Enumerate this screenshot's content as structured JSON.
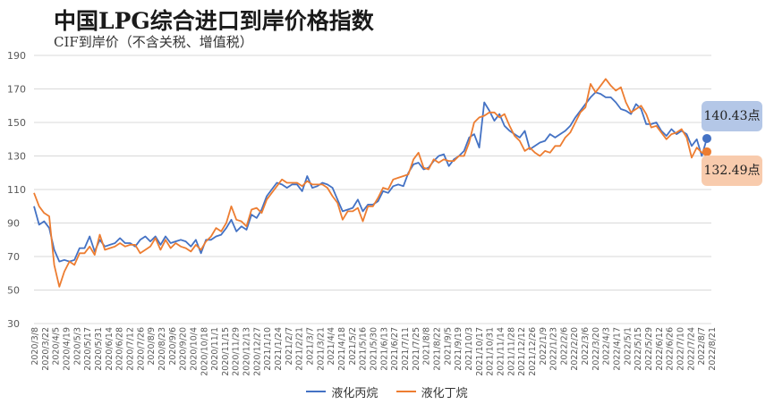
{
  "header": {
    "title": "中国LPG综合进口到岸价格指数",
    "subtitle": "CIF到岸价（不含关税、增值税）"
  },
  "colors": {
    "propane": "#4472C4",
    "butane": "#ED7D31",
    "callout_propane_bg": "#B4C7E7",
    "callout_butane_bg": "#F8CBAD",
    "grid": "#d9d9d9",
    "axis_text": "#595959"
  },
  "callouts": {
    "propane": "140.43点",
    "butane": "132.49点"
  },
  "chart_data": {
    "type": "line",
    "title": "中国LPG综合进口到岸价格指数",
    "subtitle": "CIF到岸价（不含关税、增值税）",
    "ylim": [
      30,
      190
    ],
    "yticks": [
      30,
      50,
      70,
      90,
      110,
      130,
      150,
      170,
      190
    ],
    "grid": true,
    "legend_position": "bottom",
    "x_tick_labels": [
      "2020/3/8",
      "2020/3/22",
      "2020/4/5",
      "2020/4/19",
      "2020/5/3",
      "2020/5/17",
      "2020/5/31",
      "2020/6/14",
      "2020/6/28",
      "2020/7/12",
      "2020/7/26",
      "2020/8/9",
      "2020/8/23",
      "2020/9/6",
      "2020/9/20",
      "2020/10/4",
      "2020/10/18",
      "2020/11/1",
      "2020/11/15",
      "2020/11/29",
      "2020/12/13",
      "2020/12/27",
      "2021/1/10",
      "2021/1/24",
      "2021/2/7",
      "2021/2/21",
      "2021/3/7",
      "2021/3/21",
      "2021/4/4",
      "2021/4/18",
      "2021/5/2",
      "2021/5/16",
      "2021/5/30",
      "2021/6/13",
      "2021/6/27",
      "2021/7/11",
      "2021/7/25",
      "2021/8/8",
      "2021/8/22",
      "2021/9/5",
      "2021/9/19",
      "2021/10/3",
      "2021/10/17",
      "2021/10/31",
      "2021/11/14",
      "2021/11/28",
      "2021/12/12",
      "2021/12/26",
      "2022/1/9",
      "2022/1/23",
      "2022/2/6",
      "2022/2/20",
      "2022/3/6",
      "2022/3/20",
      "2022/4/3",
      "2022/4/17",
      "2022/5/1",
      "2022/5/15",
      "2022/5/29",
      "2022/6/12",
      "2022/6/26",
      "2022/7/10",
      "2022/7/24",
      "2022/8/7",
      "2022/8/21"
    ],
    "series": [
      {
        "name": "液化丙烷",
        "color": "#4472C4",
        "values": [
          100,
          89,
          91,
          87,
          74,
          67,
          68,
          67,
          68,
          75,
          75,
          82,
          73,
          80,
          76,
          77,
          78,
          81,
          78,
          78,
          76,
          80,
          82,
          79,
          82,
          77,
          82,
          78,
          79,
          80,
          79,
          76,
          80,
          72,
          80,
          80,
          82,
          83,
          87,
          92,
          85,
          88,
          86,
          95,
          93,
          98,
          106,
          110,
          114,
          113,
          111,
          113,
          113,
          109,
          118,
          111,
          112,
          114,
          113,
          111,
          104,
          97,
          98,
          99,
          104,
          97,
          101,
          101,
          103,
          109,
          108,
          112,
          113,
          112,
          120,
          125,
          126,
          122,
          123,
          127,
          130,
          131,
          124,
          128,
          130,
          133,
          141,
          143,
          135,
          162,
          157,
          151,
          155,
          148,
          145,
          143,
          141,
          145,
          134,
          136,
          138,
          139,
          143,
          141,
          143,
          145,
          148,
          153,
          157,
          161,
          165,
          168,
          167,
          165,
          165,
          162,
          158,
          157,
          155,
          161,
          158,
          149,
          149,
          150,
          145,
          142,
          146,
          143,
          145,
          143,
          136,
          140,
          130,
          140.43
        ],
        "end_label": "140.43点"
      },
      {
        "name": "液化丁烷",
        "color": "#ED7D31",
        "values": [
          108,
          100,
          96,
          94,
          65,
          52,
          61,
          67,
          65,
          72,
          72,
          76,
          71,
          83,
          74,
          75,
          76,
          78,
          76,
          77,
          77,
          72,
          74,
          76,
          81,
          74,
          80,
          75,
          78,
          76,
          75,
          73,
          77,
          74,
          79,
          82,
          87,
          85,
          90,
          100,
          92,
          91,
          88,
          98,
          99,
          96,
          104,
          108,
          112,
          116,
          114,
          114,
          114,
          112,
          115,
          113,
          113,
          113,
          111,
          106,
          102,
          92,
          97,
          97,
          99,
          91,
          100,
          100,
          105,
          111,
          110,
          116,
          117,
          118,
          119,
          128,
          132,
          123,
          122,
          128,
          126,
          128,
          127,
          127,
          130,
          130,
          138,
          150,
          153,
          154,
          156,
          156,
          153,
          155,
          148,
          142,
          139,
          133,
          135,
          132,
          130,
          133,
          132,
          136,
          136,
          141,
          144,
          150,
          156,
          159,
          173,
          168,
          172,
          176,
          172,
          169,
          171,
          162,
          156,
          158,
          160,
          155,
          147,
          148,
          144,
          140,
          143,
          144,
          146,
          141,
          129,
          135,
          132,
          132.49
        ],
        "end_label": "132.49点"
      }
    ]
  }
}
